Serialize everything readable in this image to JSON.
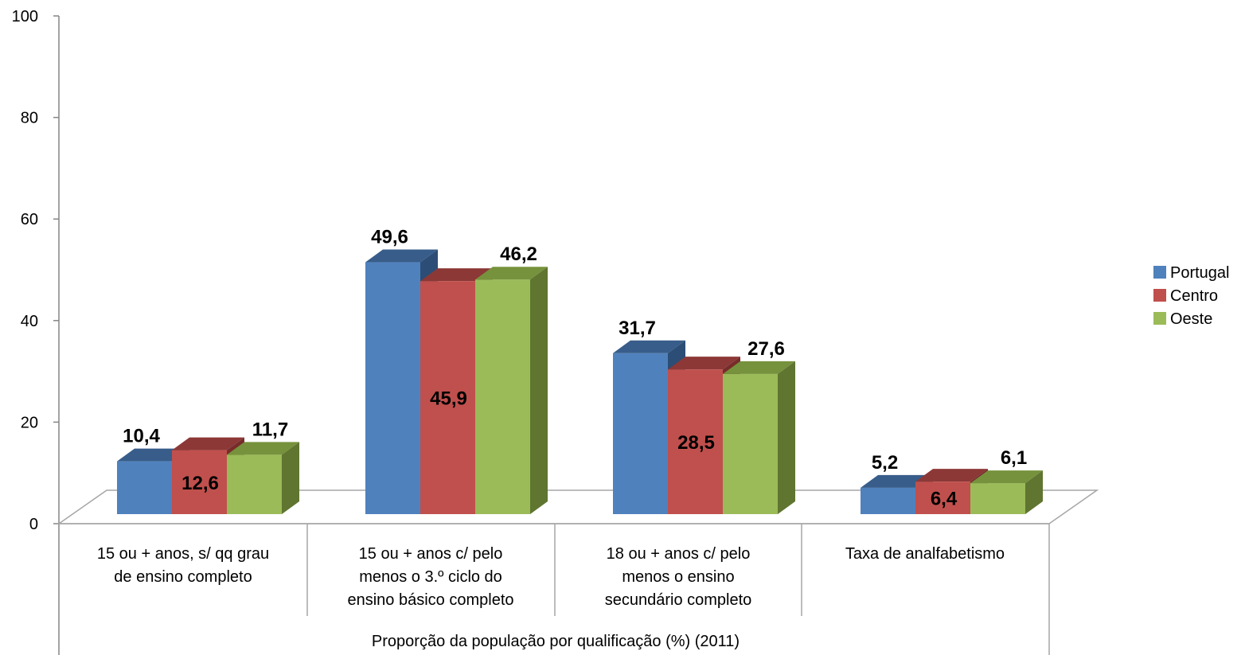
{
  "chart_data": {
    "type": "bar",
    "xlabel": "Proporção da população por qualificação  (%) (2011)",
    "ylabel": "",
    "ylim": [
      0,
      100
    ],
    "yticks": [
      "0",
      "20",
      "40",
      "60",
      "80",
      "100"
    ],
    "categories": [
      [
        "15 ou + anos, s/ qq grau",
        "de ensino completo"
      ],
      [
        "15 ou + anos c/ pelo",
        "menos o 3.º ciclo do",
        "ensino básico completo"
      ],
      [
        "18 ou + anos c/ pelo",
        "menos o ensino",
        "secundário completo"
      ],
      [
        "Taxa de analfabetismo"
      ]
    ],
    "series": [
      {
        "name": "Portugal",
        "values": [
          10.4,
          49.6,
          31.7,
          5.2
        ],
        "labels": [
          "10,4",
          "49,6",
          "31,7",
          "5,2"
        ]
      },
      {
        "name": "Centro",
        "values": [
          12.6,
          45.9,
          28.5,
          6.4
        ],
        "labels": [
          "12,6",
          "45,9",
          "28,5",
          "6,4"
        ]
      },
      {
        "name": "Oeste",
        "values": [
          11.7,
          46.2,
          27.6,
          6.1
        ],
        "labels": [
          "11,7",
          "46,2",
          "27,6",
          "6,1"
        ]
      }
    ],
    "legend_position": "right",
    "grid": false,
    "colors": {
      "Portugal": {
        "front": "#4F81BD",
        "top": "#385D8A",
        "side": "#2C4D75"
      },
      "Centro": {
        "front": "#C0504D",
        "top": "#8C3836",
        "side": "#772C2A"
      },
      "Oeste": {
        "front": "#9BBB59",
        "top": "#76923C",
        "side": "#5F7530"
      }
    }
  }
}
